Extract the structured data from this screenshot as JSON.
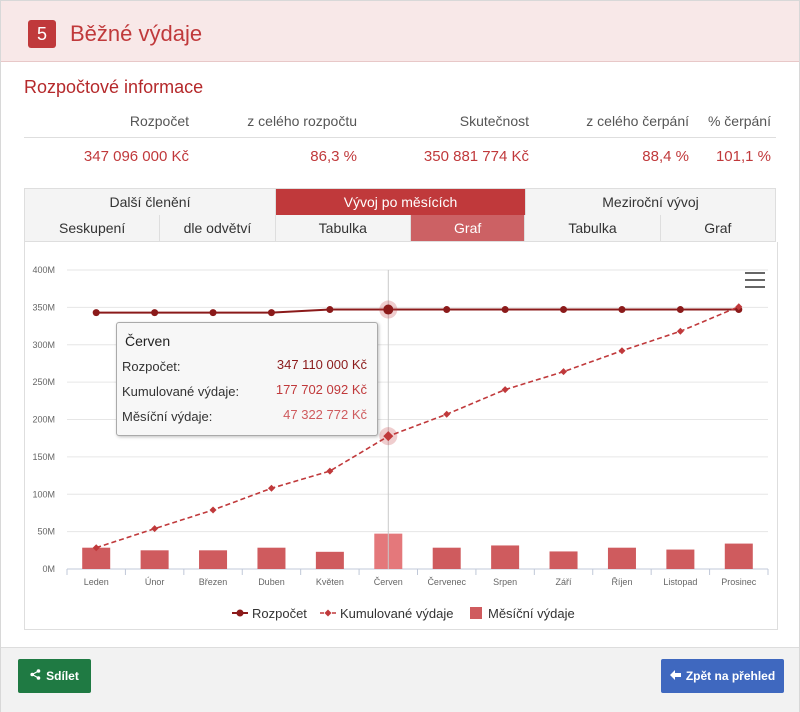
{
  "header": {
    "number": "5",
    "title": "Běžné výdaje"
  },
  "budget_info": {
    "section_title": "Rozpočtové informace",
    "columns": [
      "Rozpočet",
      "z celého rozpočtu",
      "Skutečnost",
      "z celého čerpání",
      "% čerpání"
    ],
    "values": [
      "347 096 000 Kč",
      "86,3 %",
      "350 881 774 Kč",
      "88,4 %",
      "101,1 %"
    ]
  },
  "tabs_top": [
    {
      "label": "Další členění"
    },
    {
      "label": "Vývoj po měsících",
      "active": true
    },
    {
      "label": "Meziroční vývoj"
    }
  ],
  "tabs_sub": [
    {
      "label": "Seskupení"
    },
    {
      "label": "dle odvětví"
    },
    {
      "label": "Tabulka"
    },
    {
      "label": "Graf",
      "active": true
    },
    {
      "label": "Tabulka"
    },
    {
      "label": "Graf"
    }
  ],
  "chart_data": {
    "type": "line",
    "categories": [
      "Leden",
      "Únor",
      "Březen",
      "Duben",
      "Květen",
      "Červen",
      "Červenec",
      "Srpen",
      "Září",
      "Říjen",
      "Listopad",
      "Prosinec"
    ],
    "y_ticks": [
      "0M",
      "50M",
      "100M",
      "150M",
      "200M",
      "250M",
      "300M",
      "350M",
      "400M"
    ],
    "ylim": [
      0,
      400
    ],
    "y_unit": "M",
    "series": [
      {
        "name": "Rozpočet",
        "type": "line",
        "color": "#8b1a1a",
        "values": [
          343,
          343,
          343,
          343,
          347.1,
          347.1,
          347.1,
          347.1,
          347.1,
          347.1,
          347.1,
          347.1
        ]
      },
      {
        "name": "Kumulované výdaje",
        "type": "dashed-line",
        "color": "#c0393b",
        "values": [
          28.5,
          54,
          79,
          108,
          131,
          177.7,
          207,
          240,
          264,
          292,
          318,
          350.9
        ]
      },
      {
        "name": "Měsíční výdaje",
        "type": "column",
        "color": "#cf5b5e",
        "values": [
          28.5,
          25,
          25,
          28.5,
          23,
          47.3,
          28.5,
          31.5,
          23.5,
          28.5,
          26,
          34
        ]
      }
    ],
    "highlight_index": 5,
    "grid": true,
    "legend_position": "bottom"
  },
  "tooltip": {
    "title": "Červen",
    "rows": [
      {
        "label": "Rozpočet:",
        "value": "347 110 000 Kč"
      },
      {
        "label": "Kumulované výdaje:",
        "value": "177 702 092 Kč"
      },
      {
        "label": "Měsíční výdaje:",
        "value": "47 322 772 Kč"
      }
    ]
  },
  "legend": [
    "Rozpočet",
    "Kumulované výdaje",
    "Měsíční výdaje"
  ],
  "buttons": {
    "share": "Sdílet",
    "back": "Zpět na přehled"
  },
  "icons": {
    "share": "share-icon",
    "back": "arrow-left-icon",
    "menu": "hamburger-menu-icon"
  }
}
